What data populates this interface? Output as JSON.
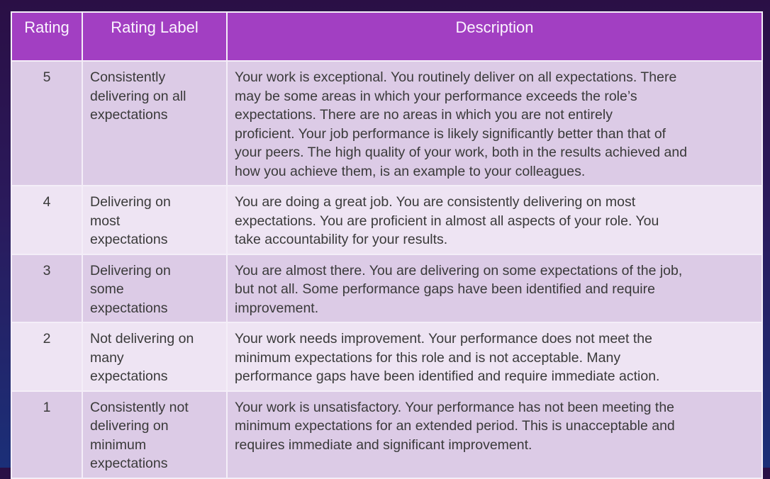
{
  "table": {
    "headers": [
      "Rating",
      "Rating Label",
      "Description"
    ],
    "rows": [
      {
        "rating": "5",
        "label": "Consistently\ndelivering on all\nexpectations",
        "description": "Your work is exceptional. You routinely deliver on all expectations. There\nmay be some areas in which your performance exceeds the role’s\nexpectations. There are no areas in which you are not entirely\nproficient. Your job performance is likely significantly better than that of\nyour peers. The high quality of your work, both in the results achieved and\nhow you achieve them, is an example to your colleagues."
      },
      {
        "rating": "4",
        "label": "Delivering on\nmost\nexpectations",
        "description": "You are doing a great job.  You are consistently delivering on most\nexpectations.  You are proficient in almost all aspects of your role.  You\ntake accountability for your results."
      },
      {
        "rating": "3",
        "label": "Delivering on\nsome\nexpectations",
        "description": "You are almost there. You are delivering on some expectations of the job,\nbut not all. Some performance gaps have been identified and require\nimprovement."
      },
      {
        "rating": "2",
        "label": "Not delivering on\nmany\nexpectations",
        "description": "Your work needs improvement.  Your performance does not meet the\nminimum expectations for this role and is not acceptable. Many\nperformance gaps have been identified and require immediate action."
      },
      {
        "rating": "1",
        "label": "Consistently not\ndelivering on\nminimum\nexpectations",
        "description": "Your work is unsatisfactory.  Your performance has not been meeting the\nminimum expectations for an extended period.  This is unacceptable and\nrequires immediate and significant improvement."
      }
    ]
  },
  "colors": {
    "header": "#a23fc2",
    "row_dark": "#dccbe6",
    "row_light": "#eee4f3"
  }
}
